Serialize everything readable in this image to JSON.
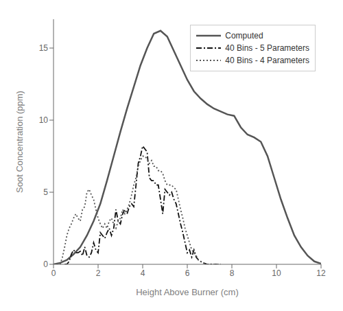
{
  "chart_data": {
    "type": "line",
    "title": "",
    "xlabel": "Height Above Burner (cm)",
    "ylabel": "Soot Concentration (ppm)",
    "xlim": [
      0,
      12
    ],
    "ylim": [
      0,
      17
    ],
    "xticks": [
      0,
      2,
      4,
      6,
      8,
      10,
      12
    ],
    "yticks": [
      0,
      5,
      10,
      15
    ],
    "grid": false,
    "legend": "upper right",
    "series": [
      {
        "name": "Computed",
        "color": "#555555",
        "line_style": "solid",
        "x": [
          0.0,
          0.3,
          0.6,
          0.9,
          1.2,
          1.5,
          1.8,
          2.1,
          2.4,
          2.7,
          3.0,
          3.3,
          3.6,
          3.9,
          4.2,
          4.5,
          4.8,
          5.1,
          5.4,
          5.7,
          6.0,
          6.3,
          6.6,
          6.9,
          7.2,
          7.5,
          7.8,
          8.1,
          8.4,
          8.7,
          9.0,
          9.3,
          9.6,
          9.9,
          10.2,
          10.5,
          10.8,
          11.1,
          11.4,
          11.7,
          12.0
        ],
        "values": [
          0.0,
          0.1,
          0.3,
          0.7,
          1.2,
          2.0,
          3.0,
          4.2,
          5.8,
          7.5,
          9.2,
          10.8,
          12.3,
          13.8,
          15.0,
          16.0,
          16.2,
          15.8,
          14.8,
          13.8,
          12.8,
          12.0,
          11.5,
          11.1,
          10.8,
          10.6,
          10.4,
          10.3,
          9.5,
          9.0,
          8.8,
          8.5,
          7.5,
          6.0,
          4.5,
          3.2,
          2.0,
          1.2,
          0.6,
          0.2,
          0.05
        ]
      },
      {
        "name": "40 Bins - 5 Parameters",
        "color": "#111111",
        "line_style": "dashdot",
        "x": [
          0.5,
          0.6,
          0.7,
          0.8,
          0.9,
          1.0,
          1.1,
          1.2,
          1.3,
          1.4,
          1.5,
          1.6,
          1.7,
          1.8,
          1.9,
          2.0,
          2.1,
          2.2,
          2.3,
          2.4,
          2.5,
          2.6,
          2.7,
          2.8,
          2.9,
          3.0,
          3.1,
          3.2,
          3.3,
          3.4,
          3.5,
          3.6,
          3.7,
          3.8,
          3.9,
          4.0,
          4.1,
          4.2,
          4.3,
          4.4,
          4.5,
          4.6,
          4.7,
          4.8,
          4.9,
          5.0,
          5.1,
          5.2,
          5.3,
          5.4,
          5.5,
          5.6,
          5.7,
          5.8,
          5.9,
          6.0,
          6.1,
          6.2,
          6.3,
          6.4,
          6.5,
          6.6,
          6.7,
          6.8,
          6.9,
          7.0,
          7.1,
          7.2,
          7.3,
          7.4
        ],
        "values": [
          0.0,
          0.0,
          0.2,
          0.7,
          1.0,
          0.8,
          0.8,
          0.9,
          0.6,
          1.2,
          0.6,
          0.5,
          0.8,
          1.5,
          1.0,
          0.8,
          2.2,
          2.0,
          1.8,
          2.2,
          2.5,
          2.0,
          2.5,
          3.8,
          3.0,
          2.8,
          3.5,
          3.8,
          3.5,
          4.0,
          4.2,
          4.0,
          5.5,
          7.0,
          7.5,
          8.2,
          8.0,
          7.8,
          6.0,
          5.8,
          5.8,
          5.5,
          5.5,
          4.5,
          3.5,
          5.2,
          5.0,
          4.8,
          5.0,
          4.5,
          4.2,
          3.5,
          2.8,
          2.2,
          1.5,
          0.8,
          1.0,
          0.5,
          1.0,
          0.5,
          0.3,
          0.2,
          0.1,
          0.05,
          0.0,
          0.0,
          0.0,
          0.0,
          0.0,
          0.0
        ]
      },
      {
        "name": "40 Bins - 4 Parameters",
        "color": "#555555",
        "line_style": "dotted",
        "x": [
          0.3,
          0.4,
          0.5,
          0.6,
          0.7,
          0.8,
          0.9,
          1.0,
          1.1,
          1.2,
          1.3,
          1.4,
          1.5,
          1.6,
          1.7,
          1.8,
          1.9,
          2.0,
          2.1,
          2.2,
          2.3,
          2.4,
          2.5,
          2.6,
          2.7,
          2.8,
          2.9,
          3.0,
          3.1,
          3.2,
          3.3,
          3.4,
          3.5,
          3.6,
          3.7,
          3.8,
          3.9,
          4.0,
          4.1,
          4.2,
          4.3,
          4.4,
          4.5,
          4.6,
          4.7,
          4.8,
          4.9,
          5.0,
          5.1,
          5.2,
          5.3,
          5.4,
          5.5,
          5.6,
          5.7,
          5.8,
          5.9,
          6.0,
          6.1,
          6.2,
          6.3,
          6.4,
          6.5,
          6.6,
          6.7,
          6.8,
          6.9,
          7.0,
          7.1,
          7.2,
          7.3,
          7.4,
          7.5
        ],
        "values": [
          0.0,
          0.5,
          1.2,
          2.0,
          2.5,
          2.8,
          3.2,
          3.5,
          3.2,
          3.0,
          3.8,
          4.0,
          5.0,
          5.2,
          4.8,
          4.5,
          3.8,
          3.2,
          2.8,
          2.5,
          2.8,
          2.5,
          3.0,
          3.2,
          2.8,
          2.5,
          3.0,
          3.2,
          3.8,
          3.5,
          3.8,
          4.2,
          4.8,
          5.5,
          6.0,
          6.8,
          7.2,
          7.5,
          7.5,
          7.3,
          7.0,
          7.2,
          6.8,
          6.8,
          6.5,
          6.5,
          6.3,
          5.8,
          5.5,
          5.5,
          5.5,
          5.3,
          5.2,
          4.5,
          3.8,
          3.2,
          2.5,
          2.0,
          1.5,
          1.0,
          0.8,
          0.6,
          0.3,
          0.2,
          0.1,
          0.05,
          0.0,
          0.0,
          0.0,
          0.0,
          0.0,
          0.0,
          0.0
        ]
      }
    ]
  }
}
